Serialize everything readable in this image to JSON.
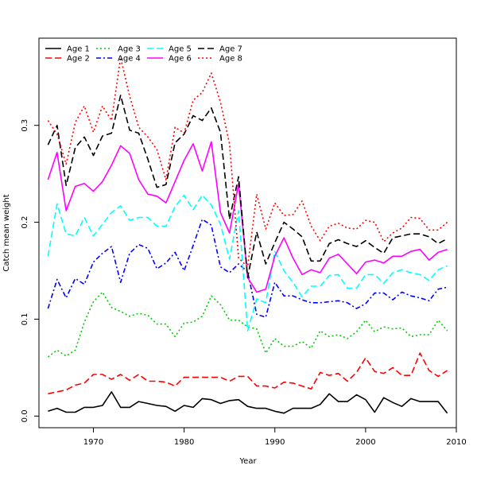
{
  "chart_data": {
    "type": "line",
    "title": "",
    "xlabel": "Year",
    "ylabel": "Catch mean weight",
    "xlim": [
      1964,
      2010
    ],
    "ylim": [
      -0.012,
      0.39
    ],
    "xticks": [
      1970,
      1980,
      1990,
      2000,
      2010
    ],
    "yticks": [
      0.0,
      0.1,
      0.2,
      0.3
    ],
    "ytick_labels": [
      "0.0",
      "0.1",
      "0.2",
      "0.3"
    ],
    "legend_position": "top-left",
    "grid": false,
    "x": [
      1965,
      1966,
      1967,
      1968,
      1969,
      1970,
      1971,
      1972,
      1973,
      1974,
      1975,
      1976,
      1977,
      1978,
      1979,
      1980,
      1981,
      1982,
      1983,
      1984,
      1985,
      1986,
      1987,
      1988,
      1989,
      1990,
      1991,
      1992,
      1993,
      1994,
      1995,
      1996,
      1997,
      1998,
      1999,
      2000,
      2001,
      2002,
      2003,
      2004,
      2005,
      2006,
      2007,
      2008,
      2009
    ],
    "series": [
      {
        "name": "Age 1",
        "color": "#000000",
        "dash": "solid",
        "values": [
          0.005,
          0.008,
          0.004,
          0.004,
          0.009,
          0.009,
          0.011,
          0.025,
          0.009,
          0.009,
          0.015,
          0.013,
          0.011,
          0.01,
          0.005,
          0.011,
          0.009,
          0.018,
          0.017,
          0.013,
          0.016,
          0.017,
          0.01,
          0.008,
          0.008,
          0.005,
          0.003,
          0.008,
          0.008,
          0.008,
          0.012,
          0.023,
          0.015,
          0.015,
          0.022,
          0.017,
          0.004,
          0.019,
          0.014,
          0.01,
          0.018,
          0.015,
          0.015,
          0.015,
          0.003
        ]
      },
      {
        "name": "Age 2",
        "color": "#ff0000",
        "dash": "longdash",
        "values": [
          0.023,
          0.025,
          0.027,
          0.032,
          0.034,
          0.043,
          0.043,
          0.038,
          0.043,
          0.037,
          0.043,
          0.036,
          0.036,
          0.035,
          0.031,
          0.04,
          0.04,
          0.04,
          0.04,
          0.04,
          0.036,
          0.041,
          0.041,
          0.031,
          0.031,
          0.029,
          0.035,
          0.034,
          0.031,
          0.028,
          0.045,
          0.042,
          0.044,
          0.036,
          0.045,
          0.06,
          0.046,
          0.044,
          0.05,
          0.042,
          0.042,
          0.065,
          0.047,
          0.041,
          0.047
        ]
      },
      {
        "name": "Age 3",
        "color": "#00cc00",
        "dash": "dotted",
        "values": [
          0.061,
          0.068,
          0.062,
          0.068,
          0.097,
          0.118,
          0.128,
          0.112,
          0.108,
          0.103,
          0.106,
          0.104,
          0.095,
          0.095,
          0.082,
          0.096,
          0.097,
          0.103,
          0.124,
          0.115,
          0.099,
          0.099,
          0.092,
          0.09,
          0.065,
          0.08,
          0.072,
          0.072,
          0.077,
          0.07,
          0.088,
          0.082,
          0.084,
          0.08,
          0.087,
          0.099,
          0.087,
          0.092,
          0.09,
          0.091,
          0.082,
          0.084,
          0.084,
          0.099,
          0.088
        ]
      },
      {
        "name": "Age 4",
        "color": "#0000ff",
        "dash": "dashdot",
        "values": [
          0.111,
          0.141,
          0.122,
          0.142,
          0.136,
          0.159,
          0.168,
          0.175,
          0.138,
          0.168,
          0.177,
          0.173,
          0.152,
          0.158,
          0.169,
          0.15,
          0.176,
          0.203,
          0.197,
          0.154,
          0.148,
          0.157,
          0.149,
          0.105,
          0.102,
          0.138,
          0.124,
          0.124,
          0.12,
          0.117,
          0.117,
          0.118,
          0.119,
          0.117,
          0.111,
          0.116,
          0.127,
          0.127,
          0.12,
          0.128,
          0.124,
          0.122,
          0.119,
          0.131,
          0.133
        ]
      },
      {
        "name": "Age 5",
        "color": "#00ffff",
        "dash": "longdash",
        "values": [
          0.165,
          0.219,
          0.188,
          0.186,
          0.205,
          0.186,
          0.198,
          0.21,
          0.217,
          0.202,
          0.205,
          0.205,
          0.196,
          0.196,
          0.216,
          0.228,
          0.213,
          0.228,
          0.218,
          0.198,
          0.162,
          0.212,
          0.088,
          0.121,
          0.117,
          0.17,
          0.15,
          0.138,
          0.123,
          0.134,
          0.134,
          0.145,
          0.146,
          0.132,
          0.132,
          0.146,
          0.146,
          0.137,
          0.148,
          0.151,
          0.148,
          0.146,
          0.14,
          0.151,
          0.155
        ]
      },
      {
        "name": "Age 6",
        "color": "#ff00ff",
        "dash": "solid",
        "values": [
          0.244,
          0.272,
          0.212,
          0.237,
          0.24,
          0.232,
          0.242,
          0.259,
          0.279,
          0.271,
          0.244,
          0.229,
          0.227,
          0.22,
          0.242,
          0.264,
          0.281,
          0.253,
          0.283,
          0.21,
          0.189,
          0.24,
          0.143,
          0.128,
          0.131,
          0.165,
          0.184,
          0.163,
          0.146,
          0.151,
          0.148,
          0.163,
          0.167,
          0.157,
          0.147,
          0.159,
          0.161,
          0.158,
          0.165,
          0.165,
          0.17,
          0.172,
          0.161,
          0.169,
          0.172
        ]
      },
      {
        "name": "Age 7",
        "color": "#000000",
        "dash": "longdash",
        "values": [
          0.28,
          0.3,
          0.238,
          0.277,
          0.288,
          0.269,
          0.289,
          0.292,
          0.331,
          0.295,
          0.292,
          0.265,
          0.236,
          0.239,
          0.282,
          0.291,
          0.31,
          0.305,
          0.318,
          0.293,
          0.203,
          0.247,
          0.143,
          0.19,
          0.157,
          0.179,
          0.2,
          0.193,
          0.185,
          0.16,
          0.16,
          0.178,
          0.182,
          0.178,
          0.175,
          0.181,
          0.174,
          0.168,
          0.184,
          0.186,
          0.188,
          0.188,
          0.185,
          0.178,
          0.183
        ]
      },
      {
        "name": "Age 8",
        "color": "#ff0000",
        "dash": "dotted",
        "values": [
          0.305,
          0.291,
          0.26,
          0.303,
          0.32,
          0.293,
          0.32,
          0.305,
          0.37,
          0.33,
          0.298,
          0.288,
          0.275,
          0.244,
          0.298,
          0.292,
          0.326,
          0.334,
          0.354,
          0.324,
          0.281,
          0.163,
          0.154,
          0.229,
          0.193,
          0.22,
          0.207,
          0.208,
          0.222,
          0.196,
          0.181,
          0.196,
          0.199,
          0.194,
          0.193,
          0.202,
          0.2,
          0.18,
          0.189,
          0.194,
          0.205,
          0.204,
          0.192,
          0.192,
          0.2
        ]
      }
    ]
  }
}
